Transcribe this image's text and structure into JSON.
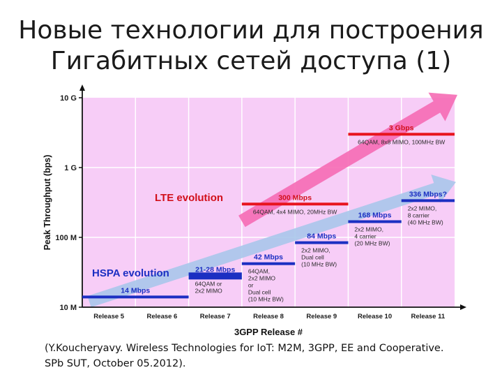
{
  "slide": {
    "title_line1": "Новые технологии для построения",
    "title_line2": "Гигабитных сетей доступа (1)",
    "caption_line1": "(Y.Koucheryavy. Wireless Technologies for IoT: M2M, 3GPP, EE and Cooperative.",
    "caption_line2": "SPb SUT, October 05.2012)."
  },
  "colors": {
    "plot_bg": "#f7cdf7",
    "gridline": "#ffffff",
    "lte": "#e8141e",
    "hspa": "#1b2fc2",
    "lte_arrow": "#f56cb4",
    "hspa_arrow": "#a9c6ea",
    "axis": "#111111"
  },
  "chart_data": {
    "type": "step",
    "xlabel": "3GPP Release #",
    "ylabel": "Peak Throughput (bps)",
    "y_scale": "log",
    "ylim": [
      "10 M",
      "10 G"
    ],
    "y_ticks": [
      "10 G",
      "1 G",
      "100 M",
      "10 M"
    ],
    "categories": [
      "Release 5",
      "Release 6",
      "Release 7",
      "Release 8",
      "Release 9",
      "Release 10",
      "Release 11"
    ],
    "series": [
      {
        "name": "LTE evolution",
        "color": "#e8141e",
        "arrow": {
          "from": "Release 8",
          "to": "Release 11"
        },
        "steps": [
          {
            "from": 3,
            "to": 5,
            "value": 300,
            "label": "300 Mbps",
            "note": "64QAM, 4x4 MIMO, 20MHz BW"
          },
          {
            "from": 5,
            "to": 7,
            "value": 3000,
            "label": "3 Gbps",
            "note": "64QAM, 8x8 MIMO, 100MHz BW"
          }
        ]
      },
      {
        "name": "HSPA evolution",
        "color": "#1b2fc2",
        "arrow": {
          "from": "Release 5",
          "to": "Release 11"
        },
        "steps": [
          {
            "from": 0,
            "to": 2,
            "value": 14,
            "label": "14 Mbps",
            "note": ""
          },
          {
            "from": 2,
            "to": 3,
            "value": 28,
            "label": "21-28 Mbps",
            "note": "64QAM or|2x2 MIMO"
          },
          {
            "from": 3,
            "to": 4,
            "value": 42,
            "label": "42 Mbps",
            "note": "64QAM,|2x2 MIMO|or|Dual cell|(10 MHz BW)"
          },
          {
            "from": 4,
            "to": 5,
            "value": 84,
            "label": "84 Mbps",
            "note": "2x2 MIMO,|Dual cell|(10 MHz BW)"
          },
          {
            "from": 5,
            "to": 6,
            "value": 168,
            "label": "168 Mbps",
            "note": "2x2 MIMO,|4 carrier|(20 MHz BW)"
          },
          {
            "from": 6,
            "to": 7,
            "value": 336,
            "label": "336 Mbps?",
            "note": "2x2 MIMO,|8 carrier|(40 MHz BW)"
          }
        ]
      }
    ]
  }
}
